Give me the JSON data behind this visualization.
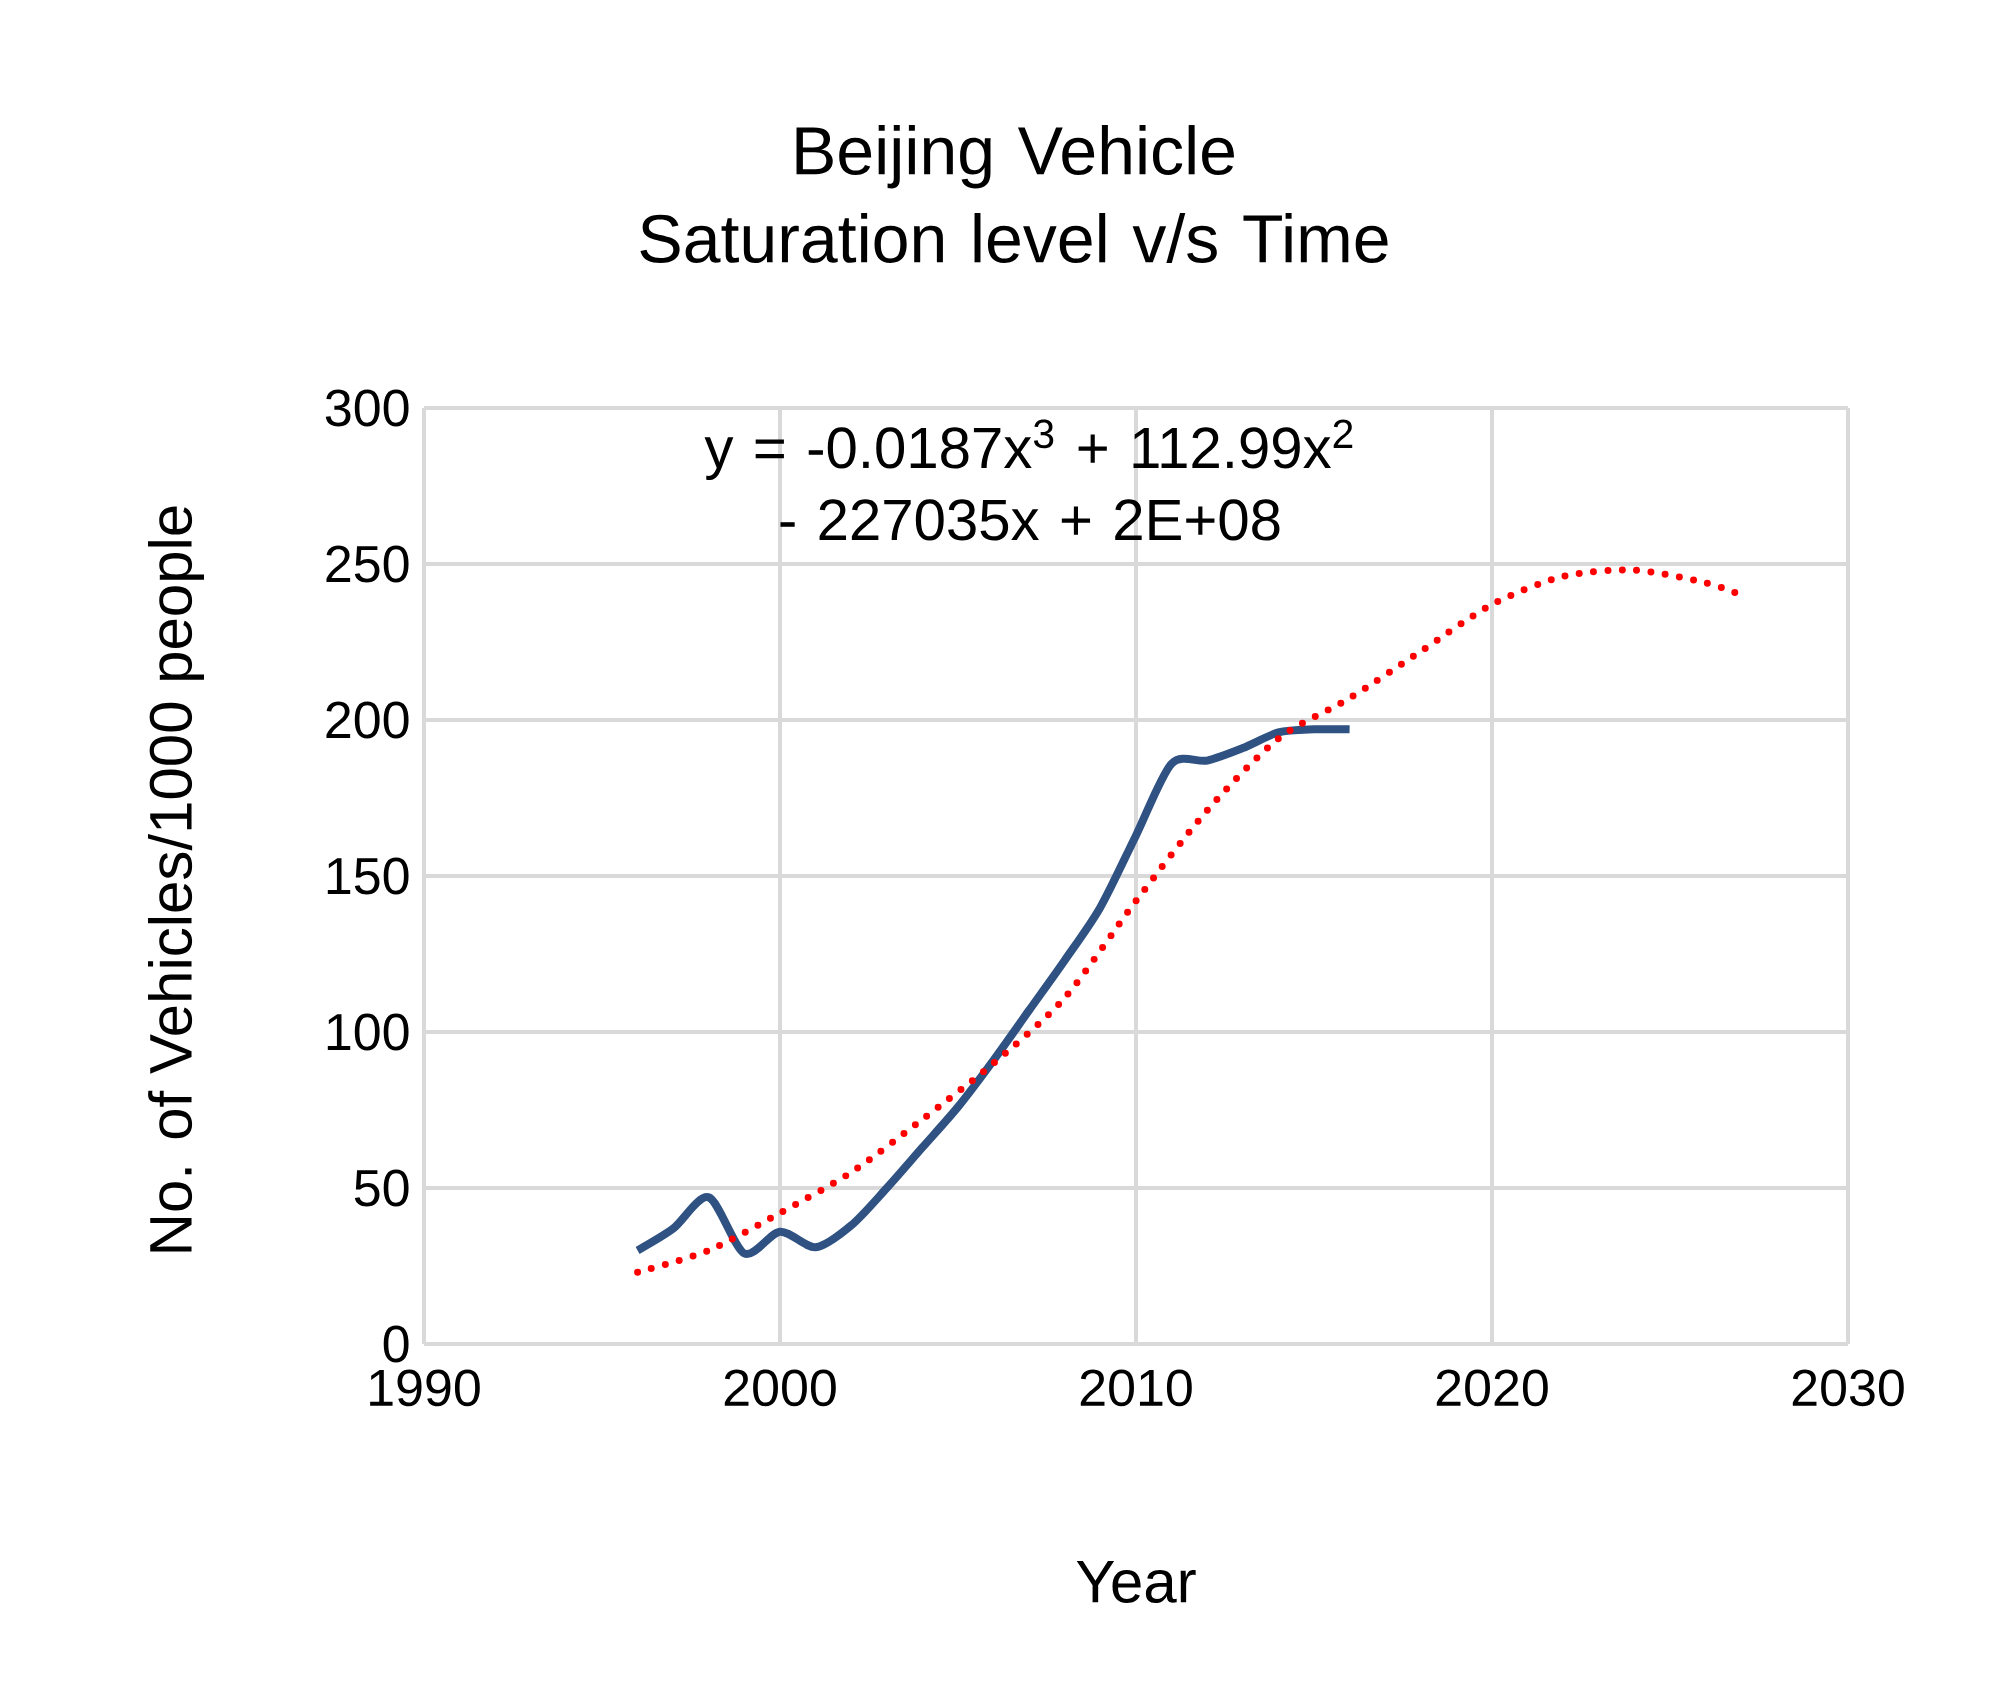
{
  "chart_data": {
    "type": "line",
    "title": "Beijing Vehicle Saturation level v/s Time",
    "xlabel": "Year",
    "ylabel": "No. of Vehicles/1000 people",
    "annotations": [
      "y = -0.0187x$^{3}$ + 112.99x$^{2}$ - 227035x + 2E+08"
    ],
    "series": [
      {
        "color": "#2f5283",
        "line_style": "solid",
        "x": [
          1996,
          1997,
          1998,
          1999,
          2000,
          2001,
          2002,
          2003,
          2004,
          2005,
          2006,
          2007,
          2008,
          2009,
          2010,
          2011,
          2012,
          2013,
          2014,
          2015,
          2016
        ],
        "values": [
          30,
          37,
          47,
          29,
          36,
          31,
          38,
          50,
          63,
          76,
          91,
          107,
          123,
          140,
          163,
          186,
          187,
          191,
          196,
          197,
          197
        ]
      },
      {
        "color": "#ff0000",
        "line_style": "dotted",
        "x": [
          1996,
          1998,
          2000,
          2002,
          2004,
          2006,
          2008,
          2010,
          2012,
          2014,
          2016,
          2018,
          2020,
          2022,
          2024,
          2026,
          2027
        ],
        "values": [
          23,
          30,
          42,
          55,
          72,
          90,
          111,
          142,
          171,
          194,
          207,
          222,
          237,
          246,
          248,
          244,
          240
        ]
      }
    ],
    "xlim": [
      1990,
      2030
    ],
    "xticks": [
      1990,
      2000,
      2010,
      2020,
      2030
    ],
    "ylim": [
      0,
      300
    ],
    "yticks": [
      0,
      50,
      100,
      150,
      200,
      250,
      300
    ],
    "grid": true,
    "legend": false,
    "marker": "none"
  }
}
